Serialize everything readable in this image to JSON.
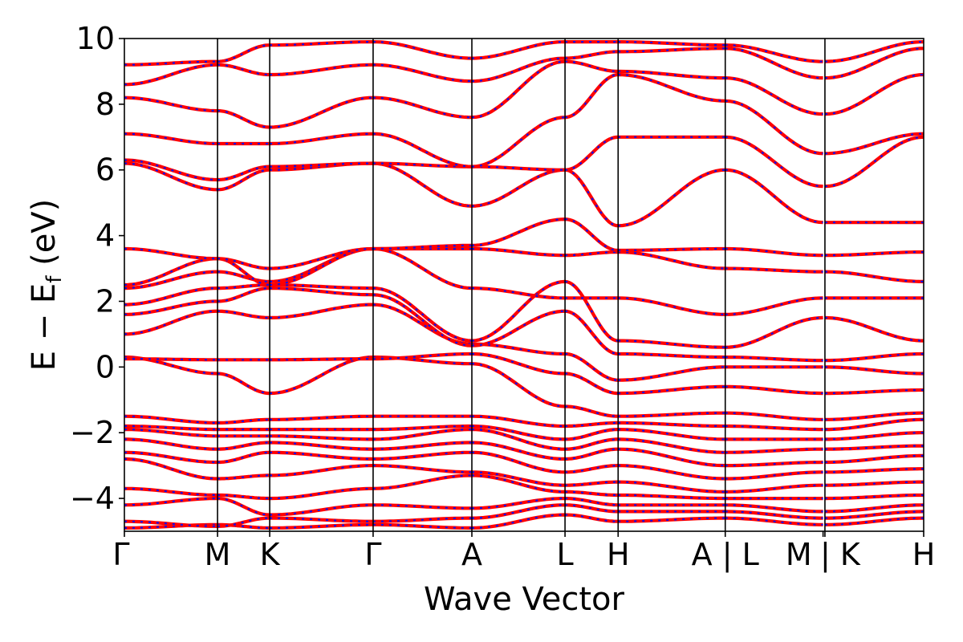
{
  "chart_data": {
    "type": "line",
    "title": "",
    "xlabel": "Wave Vector",
    "ylabel": "E − E_f (eV)",
    "ylabel_main": "E − E",
    "ylabel_sub": "f",
    "ylabel_unit": "(eV)",
    "ylim": [
      -5,
      10
    ],
    "yticks": [
      -4,
      -2,
      0,
      2,
      4,
      6,
      8,
      10
    ],
    "ytick_labels": [
      "−4",
      "−2",
      "0",
      "2",
      "4",
      "6",
      "8",
      "10"
    ],
    "xlim": [
      0,
      8.58
    ],
    "kpoints": [
      {
        "label": "Γ",
        "x": 0.0
      },
      {
        "label": "M",
        "x": 1.0
      },
      {
        "label": "K",
        "x": 1.56
      },
      {
        "label": "Γ",
        "x": 2.67
      },
      {
        "label": "A",
        "x": 3.73
      },
      {
        "label": "L",
        "x": 4.73
      },
      {
        "label": "H",
        "x": 5.3
      },
      {
        "label": "A|L",
        "x": 6.45
      },
      {
        "label": "M",
        "x": 7.5
      },
      {
        "label": "|K",
        "x": 7.52
      },
      {
        "label": "H",
        "x": 8.58
      }
    ],
    "vlines": [
      1.0,
      1.56,
      2.67,
      3.73,
      4.73,
      5.3,
      6.45,
      7.52
    ],
    "segments": [
      [
        0.0,
        1.0
      ],
      [
        1.0,
        1.56
      ],
      [
        1.56,
        2.67
      ],
      [
        2.67,
        3.73
      ],
      [
        3.73,
        4.73
      ],
      [
        4.73,
        5.3
      ],
      [
        5.3,
        6.45
      ],
      [
        6.45,
        7.5
      ],
      [
        7.52,
        8.58
      ]
    ],
    "series": [
      {
        "color": "#ff0000",
        "style": "solid"
      },
      {
        "color": "#1010ee",
        "style": "dashed"
      }
    ],
    "bands": [
      [
        -4.9,
        -4.8,
        -4.9,
        -4.8,
        -4.9,
        -4.5,
        -4.7,
        -4.6,
        -4.8,
        -4.6
      ],
      [
        -4.7,
        -4.85,
        -4.6,
        -4.7,
        -4.6,
        -4.2,
        -4.4,
        -4.4,
        -4.6,
        -4.4
      ],
      [
        -4.2,
        -4.0,
        -4.5,
        -4.2,
        -4.3,
        -4.0,
        -4.2,
        -4.2,
        -4.4,
        -4.2
      ],
      [
        -3.7,
        -3.9,
        -4.0,
        -3.7,
        -3.3,
        -3.8,
        -3.9,
        -4.0,
        -4.0,
        -3.9
      ],
      [
        -2.8,
        -3.4,
        -3.3,
        -3.0,
        -3.2,
        -3.6,
        -3.5,
        -3.8,
        -3.6,
        -3.5
      ],
      [
        -2.6,
        -2.9,
        -2.6,
        -2.8,
        -2.6,
        -3.2,
        -3.0,
        -3.4,
        -3.2,
        -3.1
      ],
      [
        -2.2,
        -2.5,
        -2.3,
        -2.5,
        -2.3,
        -2.8,
        -2.5,
        -3.0,
        -2.9,
        -2.7
      ],
      [
        -1.9,
        -2.1,
        -2.1,
        -2.2,
        -1.9,
        -2.5,
        -2.2,
        -2.6,
        -2.5,
        -2.4
      ],
      [
        -1.8,
        -1.9,
        -1.9,
        -1.9,
        -1.8,
        -2.2,
        -1.9,
        -2.2,
        -2.2,
        -2.0
      ],
      [
        -1.5,
        -1.7,
        -1.6,
        -1.5,
        -1.5,
        -1.8,
        -1.7,
        -1.8,
        -1.9,
        -1.6
      ],
      [
        0.3,
        -0.2,
        -0.8,
        0.3,
        0.1,
        -1.2,
        -1.5,
        -1.4,
        -1.6,
        -1.4
      ],
      [
        0.25,
        0.22,
        0.22,
        0.25,
        0.4,
        -0.2,
        -0.8,
        -0.6,
        -0.8,
        -0.7
      ],
      [
        1.0,
        1.7,
        1.5,
        1.9,
        0.7,
        0.4,
        -0.4,
        0.0,
        0.0,
        -0.2
      ],
      [
        1.6,
        2.0,
        2.4,
        2.2,
        0.65,
        1.7,
        0.4,
        0.3,
        0.2,
        0.4
      ],
      [
        1.9,
        2.4,
        2.5,
        2.4,
        0.8,
        2.6,
        0.8,
        0.6,
        1.5,
        0.8
      ],
      [
        2.4,
        2.9,
        2.6,
        3.6,
        2.4,
        2.1,
        2.1,
        1.6,
        2.1,
        2.1
      ],
      [
        2.5,
        3.3,
        2.5,
        3.6,
        3.6,
        3.4,
        3.5,
        3.0,
        2.9,
        2.6
      ],
      [
        3.6,
        3.3,
        3.0,
        3.6,
        3.7,
        4.5,
        3.55,
        3.6,
        3.4,
        3.5
      ],
      [
        6.2,
        5.4,
        6.0,
        6.2,
        4.9,
        6.0,
        4.3,
        6.0,
        4.4,
        4.4
      ],
      [
        6.3,
        5.7,
        6.1,
        6.2,
        6.1,
        6.0,
        7.0,
        7.0,
        5.5,
        7.0
      ],
      [
        7.1,
        6.8,
        6.8,
        7.1,
        6.1,
        7.6,
        8.9,
        8.1,
        6.5,
        7.1
      ],
      [
        8.2,
        7.8,
        7.3,
        8.2,
        7.6,
        9.3,
        9.0,
        8.8,
        7.7,
        8.9
      ],
      [
        8.6,
        9.2,
        8.9,
        9.2,
        8.7,
        9.4,
        9.6,
        9.7,
        8.8,
        9.7
      ],
      [
        9.2,
        9.3,
        9.8,
        9.9,
        9.4,
        9.9,
        9.9,
        9.8,
        9.3,
        9.9
      ]
    ]
  }
}
